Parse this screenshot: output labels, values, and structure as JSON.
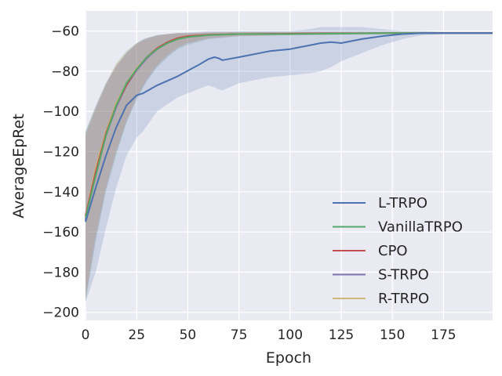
{
  "chart_data": {
    "type": "line",
    "title": "",
    "xlabel": "Epoch",
    "ylabel": "AverageEpRet",
    "xlim": [
      0,
      199
    ],
    "ylim": [
      -204,
      -50
    ],
    "x_ticks": [
      0,
      25,
      50,
      75,
      100,
      125,
      150,
      175
    ],
    "y_ticks": [
      -200,
      -180,
      -160,
      -140,
      -120,
      -100,
      -80,
      -60
    ],
    "grid": true,
    "legend_position": "lower-right",
    "series": [
      {
        "name": "L-TRPO",
        "color": "#4c72b0",
        "x": [
          0,
          5,
          10,
          15,
          20,
          25,
          28,
          35,
          45,
          55,
          60,
          63,
          65,
          67,
          75,
          90,
          100,
          110,
          115,
          120,
          125,
          135,
          145,
          155,
          165,
          175,
          199
        ],
        "y": [
          -155,
          -138,
          -122,
          -108,
          -97,
          -92,
          -91,
          -87,
          -82.5,
          -77,
          -74,
          -73,
          -73.5,
          -74.5,
          -73,
          -70,
          -69,
          -67,
          -66,
          -65.5,
          -66,
          -64,
          -62.5,
          -61.5,
          -61,
          -61,
          -61
        ],
        "lower": [
          -195,
          -180,
          -158,
          -138,
          -122,
          -113,
          -110,
          -100,
          -93,
          -89,
          -87,
          -88,
          -89,
          -89.5,
          -86,
          -83,
          -82,
          -81,
          -80,
          -78,
          -75,
          -71,
          -67,
          -64,
          -62,
          -61.5,
          -61.5
        ],
        "upper": [
          -110,
          -97,
          -86,
          -78,
          -71,
          -66,
          -64,
          -62,
          -61,
          -60.5,
          -60,
          -60,
          -60,
          -60,
          -60,
          -60,
          -60,
          -59,
          -58,
          -58,
          -58,
          -58,
          -59,
          -60,
          -60,
          -60.5,
          -60.5
        ]
      },
      {
        "name": "VanillaTRPO",
        "color": "#55a868",
        "x": [
          0,
          5,
          10,
          15,
          20,
          25,
          30,
          35,
          40,
          45,
          50,
          60,
          75,
          100,
          150,
          199
        ],
        "y": [
          -153,
          -132,
          -112,
          -97,
          -86,
          -79,
          -73,
          -69,
          -66,
          -64,
          -63,
          -62,
          -61.5,
          -61.5,
          -61,
          -61
        ],
        "lower": [
          -195,
          -165,
          -140,
          -122,
          -106,
          -94,
          -85,
          -78,
          -73,
          -69,
          -67,
          -64,
          -62.5,
          -62,
          -61.5,
          -61.5
        ],
        "upper": [
          -110,
          -98,
          -86,
          -76,
          -70,
          -66,
          -63.5,
          -62,
          -61.5,
          -61,
          -61,
          -61,
          -60.5,
          -60.5,
          -60.5,
          -60.5
        ]
      },
      {
        "name": "CPO",
        "color": "#c44e52",
        "x": [
          0,
          5,
          10,
          15,
          20,
          25,
          30,
          35,
          40,
          45,
          50,
          60,
          75,
          100,
          150,
          199
        ],
        "y": [
          -152,
          -130,
          -111,
          -97,
          -87,
          -79,
          -73,
          -68.5,
          -65.5,
          -63.5,
          -62.5,
          -61.8,
          -61.5,
          -61.3,
          -61,
          -61
        ],
        "lower": [
          -193,
          -162,
          -138,
          -120,
          -105,
          -93,
          -84,
          -77,
          -72,
          -68,
          -66,
          -63.5,
          -62.5,
          -62,
          -61.5,
          -61.5
        ],
        "upper": [
          -112,
          -99,
          -87,
          -77,
          -71,
          -66.5,
          -64,
          -62.5,
          -61.5,
          -61,
          -61,
          -60.7,
          -60.5,
          -60.5,
          -60.5,
          -60.5
        ]
      },
      {
        "name": "S-TRPO",
        "color": "#8172b2",
        "x": [
          0,
          5,
          10,
          15,
          20,
          25,
          30,
          35,
          40,
          45,
          50,
          60,
          75,
          100,
          150,
          199
        ],
        "y": [
          -154,
          -131,
          -112,
          -98,
          -87,
          -79.5,
          -73.5,
          -69,
          -66,
          -64,
          -63,
          -62,
          -61.5,
          -61.3,
          -61,
          -61
        ],
        "lower": [
          -194,
          -164,
          -139,
          -121,
          -105,
          -94,
          -85,
          -78,
          -73,
          -69,
          -66.5,
          -64,
          -62.5,
          -62,
          -61.5,
          -61.5
        ],
        "upper": [
          -111,
          -98,
          -86,
          -77,
          -70.5,
          -66,
          -63.5,
          -62.2,
          -61.5,
          -61,
          -61,
          -60.7,
          -60.5,
          -60.5,
          -60.5,
          -60.5
        ]
      },
      {
        "name": "R-TRPO",
        "color": "#ccb974",
        "x": [
          0,
          5,
          10,
          15,
          20,
          25,
          30,
          35,
          40,
          45,
          50,
          60,
          75,
          100,
          150,
          199
        ],
        "y": [
          -152,
          -128,
          -110,
          -96,
          -86,
          -78.5,
          -73,
          -68.5,
          -65.5,
          -63.5,
          -62.5,
          -61.8,
          -61.5,
          -61.3,
          -61,
          -61
        ],
        "lower": [
          -192,
          -160,
          -137,
          -119,
          -104,
          -92,
          -83,
          -76.5,
          -71.5,
          -68,
          -65.5,
          -63.5,
          -62.5,
          -62,
          -61.5,
          -61.5
        ],
        "upper": [
          -112,
          -97,
          -86,
          -76,
          -70,
          -66,
          -63.5,
          -62,
          -61.5,
          -61,
          -61,
          -60.7,
          -60.5,
          -60.5,
          -60.5,
          -60.5
        ]
      }
    ]
  }
}
